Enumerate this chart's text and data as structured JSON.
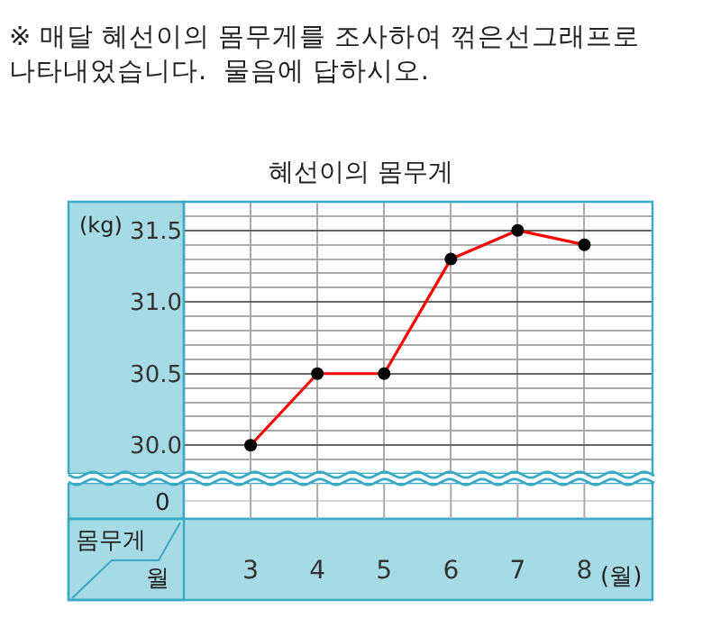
{
  "chart_data": {
    "type": "line",
    "title": "혜선이의 몸무게",
    "xlabel": "(월)",
    "ylabel": "(kg)",
    "categories": [
      "3",
      "4",
      "5",
      "6",
      "7",
      "8"
    ],
    "series": [
      {
        "color": "#ff0000",
        "values": [
          30.0,
          30.5,
          30.5,
          31.3,
          31.5,
          31.4
        ]
      }
    ],
    "ylim": [
      29.8,
      31.7
    ],
    "yticks": [
      {
        "value": 30.0,
        "label": "30.0"
      },
      {
        "value": 30.5,
        "label": "30.5"
      },
      {
        "value": 31.0,
        "label": "31.0"
      },
      31.5
    ],
    "grid": true,
    "marker": "circle",
    "line_style": "solid",
    "annotations": [
      "※ 매달 혜선이의 몸무게를 조사하여 꺾은선그래프로\n나타내었습니다.  물음에 답하시오.",
      "0",
      "몸무게",
      "월"
    ]
  }
}
